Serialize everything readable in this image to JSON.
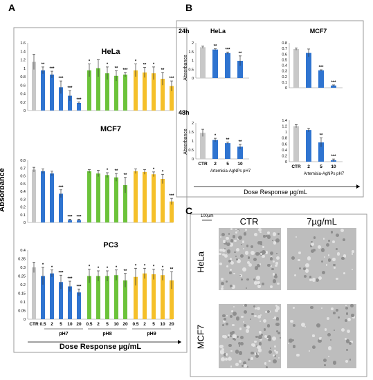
{
  "panels": {
    "a": "A",
    "b": "B",
    "c": "C"
  },
  "colors": {
    "control": "#c8c8c8",
    "ph7": "#2f74d0",
    "ph8": "#6cc33a",
    "ph9": "#f5c02a"
  },
  "panel_a": {
    "ylabel": "Absorbance",
    "xlabel": "Dose Response µg/mL",
    "group_labels": [
      "pH7",
      "pH8",
      "pH9"
    ],
    "x_ticks": [
      "CTR",
      "0.5",
      "2",
      "5",
      "10",
      "20",
      "0.5",
      "2",
      "5",
      "10",
      "20",
      "0.5",
      "2",
      "5",
      "10",
      "20"
    ]
  },
  "panel_b": {
    "xlabel": "Dose Response µg/mL",
    "row_labels": [
      "24h",
      "48h"
    ],
    "ylabel": "Absorbance",
    "x_ticks": [
      "CTR",
      "2",
      "5",
      "10"
    ],
    "group_label": "Artemisia-AgNPs pH7"
  },
  "panel_c": {
    "scale": "100µm",
    "columns": [
      "CTR",
      "7µg/mL"
    ],
    "rows": [
      "HeLa",
      "MCF7"
    ]
  },
  "chart_data": [
    {
      "type": "bar",
      "title": "HeLa",
      "panel": "A",
      "ylim": [
        0,
        1.6
      ],
      "yticks": [
        "0",
        "0.2",
        "0.4",
        "0.6",
        "0.8",
        "1",
        "1.2",
        "1.4",
        "1.6"
      ],
      "values": [
        1.15,
        0.95,
        0.85,
        0.55,
        0.35,
        0.18,
        0.95,
        1.0,
        0.88,
        0.82,
        0.85,
        0.95,
        0.9,
        0.88,
        0.75,
        0.58
      ],
      "errors": [
        0.18,
        0.08,
        0.08,
        0.15,
        0.12,
        0.02,
        0.15,
        0.2,
        0.15,
        0.12,
        0.05,
        0.15,
        0.12,
        0.15,
        0.15,
        0.12
      ],
      "groups": [
        0,
        1,
        1,
        1,
        1,
        1,
        2,
        2,
        2,
        2,
        2,
        3,
        3,
        3,
        3,
        3
      ],
      "sig": [
        "",
        "**",
        "***",
        "***",
        "***",
        "***",
        "*",
        "",
        "*",
        "**",
        "***",
        "*",
        "**",
        "*",
        "**",
        "***"
      ]
    },
    {
      "type": "bar",
      "title": "MCF7",
      "panel": "A",
      "ylim": [
        0,
        0.8
      ],
      "yticks": [
        "0",
        "0.1",
        "0.2",
        "0.3",
        "0.4",
        "0.5",
        "0.6",
        "0.7",
        "0.8"
      ],
      "values": [
        0.68,
        0.66,
        0.63,
        0.37,
        0.03,
        0.03,
        0.66,
        0.63,
        0.61,
        0.58,
        0.48,
        0.66,
        0.65,
        0.62,
        0.56,
        0.27
      ],
      "errors": [
        0.03,
        0.03,
        0.03,
        0.05,
        0.01,
        0.01,
        0.02,
        0.04,
        0.03,
        0.05,
        0.1,
        0.03,
        0.03,
        0.03,
        0.06,
        0.04
      ],
      "groups": [
        0,
        1,
        1,
        1,
        1,
        1,
        2,
        2,
        2,
        2,
        2,
        3,
        3,
        3,
        3,
        3
      ],
      "sig": [
        "",
        "",
        "",
        "***",
        "***",
        "***",
        "",
        "",
        "*",
        "**",
        "**",
        "",
        "",
        "*",
        "*",
        "***"
      ]
    },
    {
      "type": "bar",
      "title": "PC3",
      "panel": "A",
      "ylim": [
        0,
        0.4
      ],
      "yticks": [
        "0",
        "0.05",
        "0.1",
        "0.15",
        "0.2",
        "0.25",
        "0.3",
        "0.35",
        "0.4"
      ],
      "values": [
        0.3,
        0.25,
        0.265,
        0.215,
        0.19,
        0.155,
        0.25,
        0.25,
        0.25,
        0.255,
        0.225,
        0.245,
        0.265,
        0.26,
        0.255,
        0.225
      ],
      "errors": [
        0.03,
        0.05,
        0.02,
        0.04,
        0.03,
        0.02,
        0.04,
        0.03,
        0.03,
        0.03,
        0.04,
        0.05,
        0.03,
        0.03,
        0.03,
        0.05
      ],
      "groups": [
        0,
        1,
        1,
        1,
        1,
        1,
        2,
        2,
        2,
        2,
        2,
        3,
        3,
        3,
        3,
        3
      ],
      "sig": [
        "",
        "*",
        "*",
        "***",
        "***",
        "***",
        "*",
        "*",
        "*",
        "*",
        "**",
        "*",
        "*",
        "*",
        "*",
        "**"
      ]
    },
    {
      "type": "bar",
      "title": "HeLa",
      "panel": "B",
      "row": "24h",
      "ylim": [
        0,
        2
      ],
      "yticks": [
        "0",
        "0.5",
        "1",
        "1.5",
        "2"
      ],
      "values": [
        1.75,
        1.62,
        1.42,
        0.98
      ],
      "errors": [
        0.06,
        0.04,
        0.06,
        0.28
      ],
      "groups": [
        0,
        1,
        1,
        1
      ],
      "sig": [
        "",
        "**",
        "***",
        "**"
      ]
    },
    {
      "type": "bar",
      "title": "MCF7",
      "panel": "B",
      "row": "24h",
      "ylim": [
        0,
        0.8
      ],
      "yticks": [
        "0",
        "0.1",
        "0.2",
        "0.3",
        "0.4",
        "0.5",
        "0.6",
        "0.7",
        "0.8"
      ],
      "values": [
        0.69,
        0.62,
        0.31,
        0.04
      ],
      "errors": [
        0.02,
        0.07,
        0.01,
        0.01
      ],
      "groups": [
        0,
        1,
        1,
        1
      ],
      "sig": [
        "",
        "",
        "***",
        "***"
      ]
    },
    {
      "type": "bar",
      "panel": "B",
      "row": "48h",
      "cell": "HeLa",
      "ylim": [
        0,
        2
      ],
      "yticks": [
        "0",
        "0.5",
        "1",
        "1.5",
        "2"
      ],
      "values": [
        1.45,
        1.05,
        0.88,
        0.68
      ],
      "errors": [
        0.2,
        0.1,
        0.05,
        0.13
      ],
      "groups": [
        0,
        1,
        1,
        1
      ],
      "sig": [
        "",
        "*",
        "**",
        "**"
      ]
    },
    {
      "type": "bar",
      "panel": "B",
      "row": "48h",
      "cell": "MCF7",
      "ylim": [
        0,
        1.4
      ],
      "yticks": [
        "0",
        "0.2",
        "0.4",
        "0.6",
        "0.8",
        "1",
        "1.2",
        "1.4"
      ],
      "values": [
        1.2,
        1.07,
        0.65,
        0.05
      ],
      "errors": [
        0.05,
        0.06,
        0.15,
        0.04
      ],
      "groups": [
        0,
        1,
        1,
        1
      ],
      "sig": [
        "",
        "",
        "**",
        "***"
      ]
    }
  ]
}
